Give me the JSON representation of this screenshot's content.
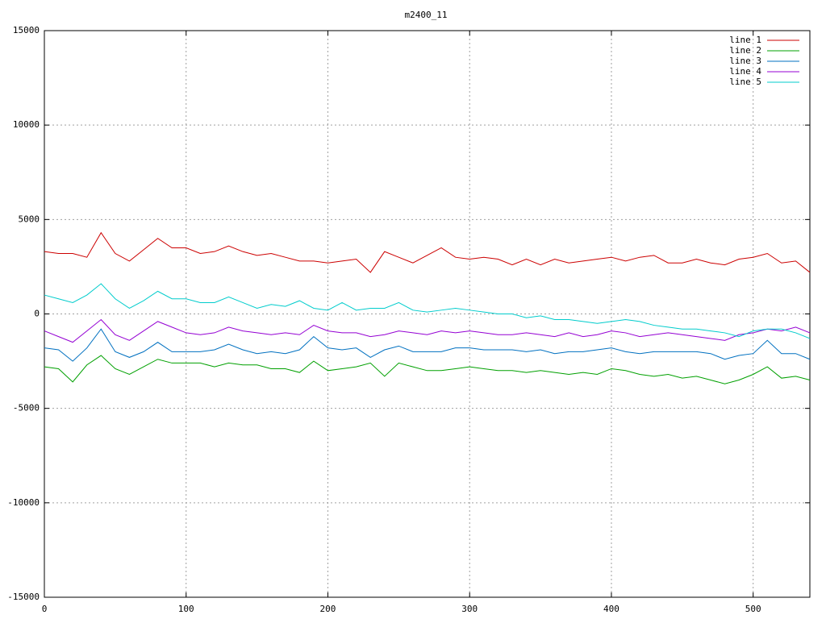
{
  "chart_data": {
    "type": "line",
    "title": "m2400_11",
    "x": [
      0,
      10,
      20,
      30,
      40,
      50,
      60,
      70,
      80,
      90,
      100,
      110,
      120,
      130,
      140,
      150,
      160,
      170,
      180,
      190,
      200,
      210,
      220,
      230,
      240,
      250,
      260,
      270,
      280,
      290,
      300,
      310,
      320,
      330,
      340,
      350,
      360,
      370,
      380,
      390,
      400,
      410,
      420,
      430,
      440,
      450,
      460,
      470,
      480,
      490,
      500,
      510,
      520,
      530,
      540
    ],
    "series": [
      {
        "name": "line 1",
        "color": "#cc0000",
        "values": [
          3300,
          3200,
          3200,
          3000,
          4300,
          3200,
          2800,
          3400,
          4000,
          3500,
          3500,
          3200,
          3300,
          3600,
          3300,
          3100,
          3200,
          3000,
          2800,
          2800,
          2700,
          2800,
          2900,
          2200,
          3300,
          3000,
          2700,
          3100,
          3500,
          3000,
          2900,
          3000,
          2900,
          2600,
          2900,
          2600,
          2900,
          2700,
          2800,
          2900,
          3000,
          2800,
          3000,
          3100,
          2700,
          2700,
          2900,
          2700,
          2600,
          2900,
          3000,
          3200,
          2700,
          2800,
          2200
        ]
      },
      {
        "name": "line 2",
        "color": "#00a000",
        "values": [
          -2800,
          -2900,
          -3600,
          -2700,
          -2200,
          -2900,
          -3200,
          -2800,
          -2400,
          -2600,
          -2600,
          -2600,
          -2800,
          -2600,
          -2700,
          -2700,
          -2900,
          -2900,
          -3100,
          -2500,
          -3000,
          -2900,
          -2800,
          -2600,
          -3300,
          -2600,
          -2800,
          -3000,
          -3000,
          -2900,
          -2800,
          -2900,
          -3000,
          -3000,
          -3100,
          -3000,
          -3100,
          -3200,
          -3100,
          -3200,
          -2900,
          -3000,
          -3200,
          -3300,
          -3200,
          -3400,
          -3300,
          -3500,
          -3700,
          -3500,
          -3200,
          -2800,
          -3400,
          -3300,
          -3500
        ]
      },
      {
        "name": "line 3",
        "color": "#0070c0",
        "values": [
          -1800,
          -1900,
          -2500,
          -1800,
          -800,
          -2000,
          -2300,
          -2000,
          -1500,
          -2000,
          -2000,
          -2000,
          -1900,
          -1600,
          -1900,
          -2100,
          -2000,
          -2100,
          -1900,
          -1200,
          -1800,
          -1900,
          -1800,
          -2300,
          -1900,
          -1700,
          -2000,
          -2000,
          -2000,
          -1800,
          -1800,
          -1900,
          -1900,
          -1900,
          -2000,
          -1900,
          -2100,
          -2000,
          -2000,
          -1900,
          -1800,
          -2000,
          -2100,
          -2000,
          -2000,
          -2000,
          -2000,
          -2100,
          -2400,
          -2200,
          -2100,
          -1400,
          -2100,
          -2100,
          -2400
        ]
      },
      {
        "name": "line 4",
        "color": "#9400d3",
        "values": [
          -900,
          -1200,
          -1500,
          -900,
          -300,
          -1100,
          -1400,
          -900,
          -400,
          -700,
          -1000,
          -1100,
          -1000,
          -700,
          -900,
          -1000,
          -1100,
          -1000,
          -1100,
          -600,
          -900,
          -1000,
          -1000,
          -1200,
          -1100,
          -900,
          -1000,
          -1100,
          -900,
          -1000,
          -900,
          -1000,
          -1100,
          -1100,
          -1000,
          -1100,
          -1200,
          -1000,
          -1200,
          -1100,
          -900,
          -1000,
          -1200,
          -1100,
          -1000,
          -1100,
          -1200,
          -1300,
          -1400,
          -1100,
          -1000,
          -800,
          -900,
          -700,
          -1000
        ]
      },
      {
        "name": "line 5",
        "color": "#00cccc",
        "values": [
          1000,
          800,
          600,
          1000,
          1600,
          800,
          300,
          700,
          1200,
          800,
          800,
          600,
          600,
          900,
          600,
          300,
          500,
          400,
          700,
          300,
          200,
          600,
          200,
          300,
          300,
          600,
          200,
          100,
          200,
          300,
          200,
          100,
          0,
          0,
          -200,
          -100,
          -300,
          -300,
          -400,
          -500,
          -400,
          -300,
          -400,
          -600,
          -700,
          -800,
          -800,
          -900,
          -1000,
          -1200,
          -900,
          -800,
          -800,
          -1000,
          -1300
        ]
      }
    ],
    "xlim": [
      0,
      540
    ],
    "xticks": [
      0,
      100,
      200,
      300,
      400,
      500
    ],
    "ylim": [
      -15000,
      15000
    ],
    "yticks": [
      -15000,
      -10000,
      -5000,
      0,
      5000,
      10000,
      15000
    ],
    "grid": true,
    "legend": "top-right"
  }
}
